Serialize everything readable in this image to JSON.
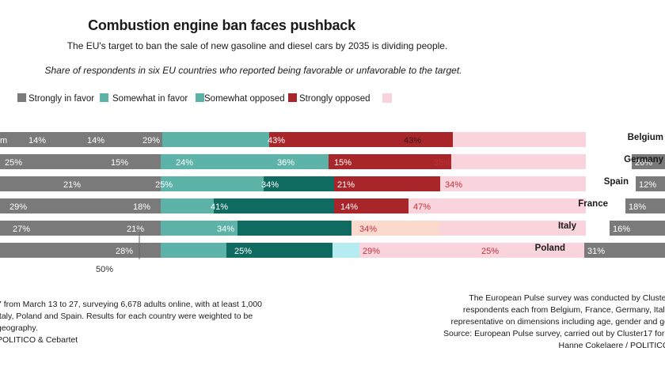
{
  "title": "Combustion engine ban faces pushback",
  "subtitle": "The EU's target to ban the sale of new gasoline and diesel cars by 2035 is dividing people.",
  "description": "Share of respondents in six EU countries who reported being favorable or unfavorable to the target.",
  "colors": {
    "strongly_in_favor": "#7a7a7a",
    "somewhat_in_favor": "#5db3a8",
    "somewhat_opposed": "#a8262a",
    "strongly_opposed": "#f9d4dc",
    "dark_teal": "#0f6b5f",
    "light_cyan": "#b4ecf1",
    "salmon": "#fbd9cd"
  },
  "axis_label": "50%",
  "notes_left": [
    "7 from March 13 to 27, surveying 6,678 adults online, with at least 1,000",
    "Italy, Poland and Spain. Results for each country were weighted to be",
    "geography.",
    "POLITICO & Cebartet"
  ],
  "notes_right": [
    "The European Pulse survey was conducted by Cluster",
    "respondents each from Belgium, France, Germany, Italy",
    "representative on dimensions including age, gender and ge",
    "Source: European Pulse survey, carried out by Cluster17 for P",
    "Hanne Cokelaere / POLITICO"
  ],
  "chart_data": {
    "type": "bar",
    "title": "Combustion engine ban faces pushback",
    "legend": [
      "Strongly in favor",
      "Somewhat in favor",
      "Somewhat opposed",
      "Strongly opposed"
    ],
    "legend_position": "top-left",
    "countries": [
      "Belgium",
      "Germany",
      "Spain",
      "France",
      "Italy",
      "Poland"
    ],
    "rows": [
      {
        "labels": [
          "m",
          "14%",
          "14%",
          "29%",
          "43%",
          "43%"
        ],
        "right_value": null
      },
      {
        "labels": [
          "25%",
          "15%",
          "24%",
          "36%",
          "15%",
          "35%"
        ],
        "right_value": "26%"
      },
      {
        "labels": [
          "21%",
          "25%",
          "34%",
          "21%",
          "34%"
        ],
        "right_value": "12%"
      },
      {
        "labels": [
          "29%",
          "18%",
          "41%",
          "14%",
          "47%"
        ],
        "right_value": "18%"
      },
      {
        "labels": [
          "27%",
          "21%",
          "34%",
          "34%"
        ],
        "right_value": "16%"
      },
      {
        "labels": [
          "28%",
          "25%",
          "29%",
          "25%"
        ],
        "right_value": "31%"
      }
    ]
  }
}
